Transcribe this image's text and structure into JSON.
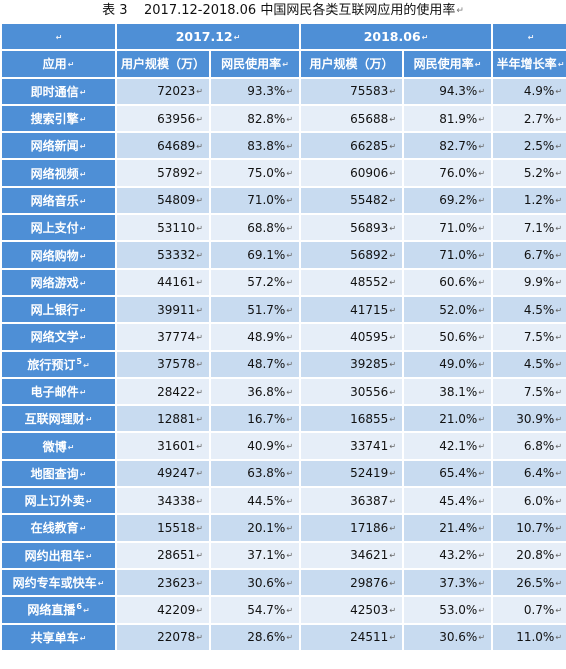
{
  "caption": {
    "label": "表 3",
    "period": "2017.12-2018.06",
    "title": "中国网民各类互联网应用的使用率",
    "mark": "↵"
  },
  "header": {
    "corner": "↵",
    "group1": "2017.12",
    "group2": "2018.06",
    "col_app": "应用",
    "col_users_1": "用户规模（万）",
    "col_rate_1": "网民使用率",
    "col_users_2": "用户规模（万）",
    "col_rate_2": "网民使用率",
    "col_growth": "半年增长率"
  },
  "paragraph_mark": "↵",
  "rows": [
    {
      "app": "即时通信",
      "note": "",
      "u1": "72023",
      "r1": "93.3%",
      "u2": "75583",
      "r2": "94.3%",
      "g": "4.9%"
    },
    {
      "app": "搜索引擎",
      "note": "",
      "u1": "63956",
      "r1": "82.8%",
      "u2": "65688",
      "r2": "81.9%",
      "g": "2.7%"
    },
    {
      "app": "网络新闻",
      "note": "",
      "u1": "64689",
      "r1": "83.8%",
      "u2": "66285",
      "r2": "82.7%",
      "g": "2.5%"
    },
    {
      "app": "网络视频",
      "note": "",
      "u1": "57892",
      "r1": "75.0%",
      "u2": "60906",
      "r2": "76.0%",
      "g": "5.2%"
    },
    {
      "app": "网络音乐",
      "note": "",
      "u1": "54809",
      "r1": "71.0%",
      "u2": "55482",
      "r2": "69.2%",
      "g": "1.2%"
    },
    {
      "app": "网上支付",
      "note": "",
      "u1": "53110",
      "r1": "68.8%",
      "u2": "56893",
      "r2": "71.0%",
      "g": "7.1%"
    },
    {
      "app": "网络购物",
      "note": "",
      "u1": "53332",
      "r1": "69.1%",
      "u2": "56892",
      "r2": "71.0%",
      "g": "6.7%"
    },
    {
      "app": "网络游戏",
      "note": "",
      "u1": "44161",
      "r1": "57.2%",
      "u2": "48552",
      "r2": "60.6%",
      "g": "9.9%"
    },
    {
      "app": "网上银行",
      "note": "",
      "u1": "39911",
      "r1": "51.7%",
      "u2": "41715",
      "r2": "52.0%",
      "g": "4.5%"
    },
    {
      "app": "网络文学",
      "note": "",
      "u1": "37774",
      "r1": "48.9%",
      "u2": "40595",
      "r2": "50.6%",
      "g": "7.5%"
    },
    {
      "app": "旅行预订",
      "note": "5",
      "u1": "37578",
      "r1": "48.7%",
      "u2": "39285",
      "r2": "49.0%",
      "g": "4.5%"
    },
    {
      "app": "电子邮件",
      "note": "",
      "u1": "28422",
      "r1": "36.8%",
      "u2": "30556",
      "r2": "38.1%",
      "g": "7.5%"
    },
    {
      "app": "互联网理财",
      "note": "",
      "u1": "12881",
      "r1": "16.7%",
      "u2": "16855",
      "r2": "21.0%",
      "g": "30.9%"
    },
    {
      "app": "微博",
      "note": "",
      "u1": "31601",
      "r1": "40.9%",
      "u2": "33741",
      "r2": "42.1%",
      "g": "6.8%"
    },
    {
      "app": "地图查询",
      "note": "",
      "u1": "49247",
      "r1": "63.8%",
      "u2": "52419",
      "r2": "65.4%",
      "g": "6.4%"
    },
    {
      "app": "网上订外卖",
      "note": "",
      "u1": "34338",
      "r1": "44.5%",
      "u2": "36387",
      "r2": "45.4%",
      "g": "6.0%"
    },
    {
      "app": "在线教育",
      "note": "",
      "u1": "15518",
      "r1": "20.1%",
      "u2": "17186",
      "r2": "21.4%",
      "g": "10.7%"
    },
    {
      "app": "网约出租车",
      "note": "",
      "u1": "28651",
      "r1": "37.1%",
      "u2": "34621",
      "r2": "43.2%",
      "g": "20.8%"
    },
    {
      "app": "网约专车或快车",
      "note": "",
      "u1": "23623",
      "r1": "30.6%",
      "u2": "29876",
      "r2": "37.3%",
      "g": "26.5%"
    },
    {
      "app": "网络直播",
      "note": "6",
      "u1": "42209",
      "r1": "54.7%",
      "u2": "42503",
      "r2": "53.0%",
      "g": "0.7%"
    },
    {
      "app": "共享单车",
      "note": "",
      "u1": "22078",
      "r1": "28.6%",
      "u2": "24511",
      "r2": "30.6%",
      "g": "11.0%"
    }
  ]
}
